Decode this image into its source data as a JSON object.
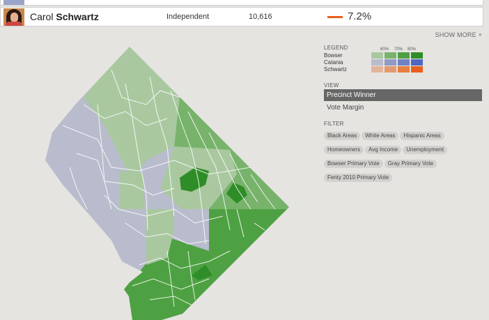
{
  "candidates": [
    {
      "first": "",
      "last": "",
      "party": "",
      "votes": "",
      "percent": ""
    },
    {
      "first": "Carol",
      "last": "Schwartz",
      "party": "Independent",
      "votes": "10,616",
      "percent": "7.2%",
      "color": "#e8601c"
    }
  ],
  "show_more": "SHOW MORE +",
  "legend": {
    "title": "LEGEND",
    "scale": [
      "60%",
      "70%",
      "80%"
    ],
    "rows": [
      {
        "name": "Bowser",
        "colors": [
          "#a9c8a0",
          "#78b36c",
          "#4ea142",
          "#2f8d27"
        ]
      },
      {
        "name": "Catania",
        "colors": [
          "#b9bccc",
          "#8f9ac6",
          "#6f80c3",
          "#4f67c0"
        ]
      },
      {
        "name": "Schwartz",
        "colors": [
          "#e2b49b",
          "#e39a70",
          "#e67e3e",
          "#e8601c"
        ]
      }
    ]
  },
  "view": {
    "title": "VIEW",
    "options": [
      {
        "label": "Precinct Winner",
        "active": true
      },
      {
        "label": "Vote Margin",
        "active": false
      }
    ]
  },
  "filter": {
    "title": "FILTER",
    "chips": [
      "Black Areas",
      "White Areas",
      "Hispanic Areas",
      "Homeowners",
      "Avg Income",
      "Unemployment",
      "Bowser Primary Vote",
      "Gray Primary Vote",
      "Fenty 2010 Primary Vote"
    ]
  },
  "colors": {
    "catania_light": "#b9bccc",
    "bowser_light": "#a9c8a0",
    "bowser_mid": "#78b36c",
    "bowser_strong": "#4ea142",
    "bowser_max": "#2f8d27"
  }
}
